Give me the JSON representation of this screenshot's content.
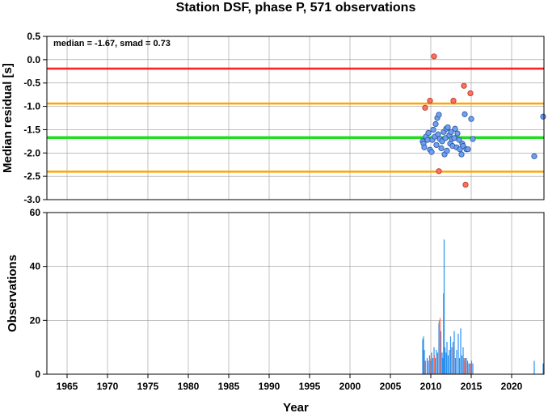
{
  "chart_data": [
    {
      "type": "scatter",
      "title": "Station DSF, phase P, 571 observations",
      "ylabel": "Median residual [s]",
      "annotation": "median = -1.67, smad = 0.73",
      "xlim": [
        1962.5,
        2024
      ],
      "ylim": [
        -3.0,
        0.5
      ],
      "yticks": [
        "0.5",
        "0.0",
        "-0.5",
        "-1.0",
        "-1.5",
        "-2.0",
        "-2.5",
        "-3.0"
      ],
      "ytick_values": [
        0.5,
        0.0,
        -0.5,
        -1.0,
        -1.5,
        -2.0,
        -2.5,
        -3.0
      ],
      "xgrid": [
        1965,
        1970,
        1975,
        1980,
        1985,
        1990,
        1995,
        2000,
        2005,
        2010,
        2015,
        2020
      ],
      "reference_lines": [
        {
          "y": -0.19,
          "color": "#ff2020"
        },
        {
          "y": -0.94,
          "color": "#ffa500"
        },
        {
          "y": -1.67,
          "color": "#22dd22"
        },
        {
          "y": -2.4,
          "color": "#ffa500"
        }
      ],
      "series": [
        {
          "color": "#ff6f5e",
          "points": [
            [
              2009.3,
              -1.03
            ],
            [
              2009.9,
              -0.88
            ],
            [
              2010.4,
              0.07
            ],
            [
              2011.0,
              -2.39
            ],
            [
              2012.8,
              -0.88
            ],
            [
              2014.1,
              -0.56
            ],
            [
              2014.3,
              -2.68
            ],
            [
              2014.9,
              -0.72
            ]
          ]
        },
        {
          "color": "#6fa0f0",
          "points": [
            [
              2009.0,
              -1.75
            ],
            [
              2009.1,
              -1.8
            ],
            [
              2009.2,
              -1.88
            ],
            [
              2009.4,
              -1.65
            ],
            [
              2009.6,
              -1.72
            ],
            [
              2009.7,
              -1.57
            ],
            [
              2009.9,
              -1.93
            ],
            [
              2010.1,
              -1.98
            ],
            [
              2010.2,
              -1.72
            ],
            [
              2010.3,
              -1.5
            ],
            [
              2010.5,
              -1.65
            ],
            [
              2010.6,
              -1.38
            ],
            [
              2010.7,
              -1.83
            ],
            [
              2010.8,
              -1.25
            ],
            [
              2010.9,
              -1.6
            ],
            [
              2011.0,
              -1.18
            ],
            [
              2011.1,
              -1.7
            ],
            [
              2011.3,
              -1.9
            ],
            [
              2011.4,
              -1.75
            ],
            [
              2011.6,
              -1.55
            ],
            [
              2011.7,
              -2.03
            ],
            [
              2011.8,
              -1.68
            ],
            [
              2011.9,
              -1.48
            ],
            [
              2012.0,
              -1.95
            ],
            [
              2012.1,
              -1.45
            ],
            [
              2012.3,
              -1.62
            ],
            [
              2012.4,
              -1.8
            ],
            [
              2012.5,
              -1.55
            ],
            [
              2012.6,
              -1.7
            ],
            [
              2012.7,
              -1.85
            ],
            [
              2012.9,
              -1.68
            ],
            [
              2013.0,
              -1.48
            ],
            [
              2013.2,
              -1.88
            ],
            [
              2013.3,
              -1.58
            ],
            [
              2013.5,
              -1.72
            ],
            [
              2013.6,
              -1.92
            ],
            [
              2013.8,
              -2.03
            ],
            [
              2013.9,
              -1.8
            ],
            [
              2014.0,
              -1.85
            ],
            [
              2014.2,
              -1.17
            ],
            [
              2014.4,
              -1.92
            ],
            [
              2014.6,
              -1.92
            ],
            [
              2015.0,
              -1.27
            ],
            [
              2015.2,
              -1.7
            ],
            [
              2022.8,
              -2.07
            ],
            [
              2023.9,
              -1.22
            ]
          ]
        }
      ]
    },
    {
      "type": "bar",
      "ylabel": "Observations",
      "xlabel": "Year",
      "xlim": [
        1962.5,
        2024
      ],
      "ylim": [
        0,
        60
      ],
      "yticks": [
        "60",
        "40",
        "20",
        "0"
      ],
      "ytick_values": [
        60,
        40,
        20,
        0
      ],
      "xticks": [
        "1965",
        "1970",
        "1975",
        "1980",
        "1985",
        "1990",
        "1995",
        "2000",
        "2005",
        "2010",
        "2015",
        "2020"
      ],
      "xtick_values": [
        1965,
        1970,
        1975,
        1980,
        1985,
        1990,
        1995,
        2000,
        2005,
        2010,
        2015,
        2020
      ],
      "series": [
        {
          "color": "#2b90ee",
          "bars": [
            [
              2009.0,
              13
            ],
            [
              2009.1,
              14
            ],
            [
              2009.2,
              9
            ],
            [
              2009.35,
              5
            ],
            [
              2009.55,
              6
            ],
            [
              2009.7,
              5
            ],
            [
              2009.85,
              7
            ],
            [
              2010.0,
              5
            ],
            [
              2010.1,
              8
            ],
            [
              2010.25,
              6
            ],
            [
              2010.4,
              10
            ],
            [
              2010.55,
              6
            ],
            [
              2010.7,
              9
            ],
            [
              2010.85,
              8
            ],
            [
              2011.0,
              19
            ],
            [
              2011.1,
              10
            ],
            [
              2011.25,
              16
            ],
            [
              2011.4,
              8
            ],
            [
              2011.5,
              6
            ],
            [
              2011.58,
              30
            ],
            [
              2011.65,
              50
            ],
            [
              2011.75,
              10
            ],
            [
              2011.9,
              8
            ],
            [
              2012.0,
              12
            ],
            [
              2012.15,
              7
            ],
            [
              2012.3,
              9
            ],
            [
              2012.45,
              14
            ],
            [
              2012.6,
              10
            ],
            [
              2012.75,
              12
            ],
            [
              2012.9,
              16
            ],
            [
              2013.05,
              6
            ],
            [
              2013.2,
              9
            ],
            [
              2013.4,
              15
            ],
            [
              2013.55,
              6
            ],
            [
              2013.7,
              17
            ],
            [
              2013.85,
              7
            ],
            [
              2014.0,
              10
            ],
            [
              2014.15,
              5
            ],
            [
              2014.25,
              6
            ],
            [
              2014.4,
              6
            ],
            [
              2014.55,
              5
            ],
            [
              2014.7,
              4
            ],
            [
              2014.85,
              4
            ],
            [
              2015.05,
              5
            ],
            [
              2015.2,
              4
            ],
            [
              2022.8,
              5
            ],
            [
              2023.9,
              4
            ]
          ]
        },
        {
          "color": "#ff6f5e",
          "bars": [
            [
              2009.3,
              5
            ],
            [
              2009.9,
              6
            ],
            [
              2010.45,
              7
            ],
            [
              2011.05,
              20
            ],
            [
              2011.15,
              21
            ],
            [
              2012.8,
              10
            ],
            [
              2014.12,
              6
            ],
            [
              2014.35,
              4
            ],
            [
              2014.95,
              4
            ]
          ]
        }
      ]
    }
  ]
}
